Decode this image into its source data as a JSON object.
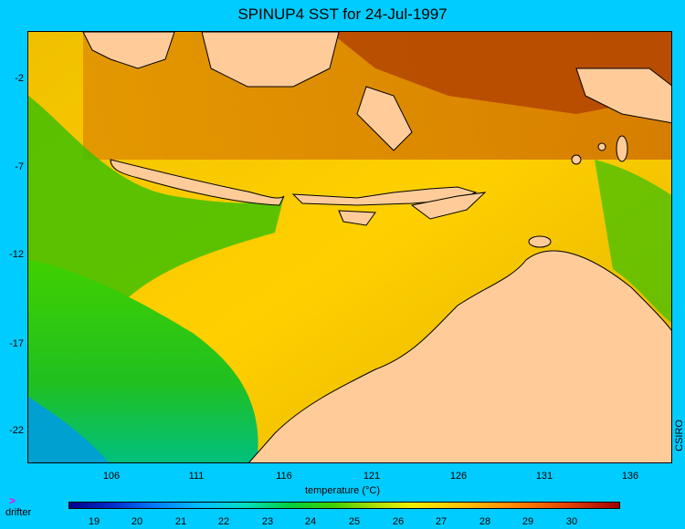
{
  "title": "SPINUP4 SST for 24-Jul-1997",
  "map": {
    "lat_ticks": [
      "-2",
      "-7",
      "-12",
      "-17",
      "-22"
    ],
    "lon_ticks": [
      "106",
      "111",
      "116",
      "121",
      "126",
      "131",
      "136"
    ],
    "land_color": "#ffcc99",
    "coast_color": "#000000"
  },
  "credit": "CSIRO",
  "colorbar": {
    "label": "temperature (°C)",
    "ticks": [
      "19",
      "20",
      "21",
      "22",
      "23",
      "24",
      "25",
      "26",
      "27",
      "28",
      "29",
      "30"
    ]
  },
  "legend": {
    "drifter_symbol": ">",
    "drifter_label": "drifter"
  }
}
